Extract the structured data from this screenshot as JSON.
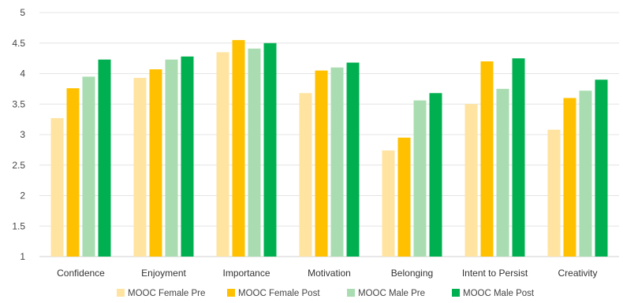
{
  "chart_data": {
    "type": "bar",
    "categories": [
      "Confidence",
      "Enjoyment",
      "Importance",
      "Motivation",
      "Belonging",
      "Intent to Persist",
      "Creativity"
    ],
    "series": [
      {
        "name": "MOOC Female Pre",
        "color": "#FFE3A1",
        "values": [
          3.27,
          3.93,
          4.35,
          3.68,
          2.74,
          3.5,
          3.08
        ]
      },
      {
        "name": "MOOC Female Post",
        "color": "#FFC000",
        "values": [
          3.76,
          4.07,
          4.55,
          4.05,
          2.95,
          4.2,
          3.6
        ]
      },
      {
        "name": "MOOC Male Pre",
        "color": "#A9DDB1",
        "values": [
          3.95,
          4.23,
          4.41,
          4.1,
          3.56,
          3.75,
          3.72
        ]
      },
      {
        "name": "MOOC Male Post",
        "color": "#00B050",
        "values": [
          4.23,
          4.28,
          4.5,
          4.18,
          3.68,
          4.25,
          3.9
        ]
      }
    ],
    "ylim": [
      1,
      5
    ],
    "yticks": [
      "1",
      "1.5",
      "2",
      "2.5",
      "3",
      "3.5",
      "4",
      "4.5",
      "5"
    ],
    "grid": true,
    "legend": "bottom",
    "title": "",
    "xlabel": "",
    "ylabel": ""
  }
}
